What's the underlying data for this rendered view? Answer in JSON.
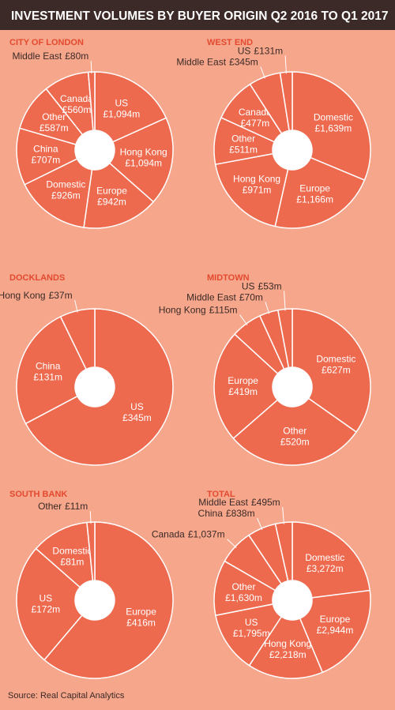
{
  "title": "INVESTMENT VOLUMES BY BUYER ORIGIN Q2 2016 TO Q1 2017",
  "source": "Source: Real Capital Analytics",
  "chart_data": [
    {
      "type": "pie",
      "title": "CITY OF LONDON",
      "color": "#ee6a4f",
      "categories": [
        "US",
        "Hong Kong",
        "Europe",
        "Domestic",
        "China",
        "Other",
        "Canada",
        "Middle East"
      ],
      "values": [
        1094,
        1094,
        942,
        926,
        707,
        587,
        560,
        80
      ],
      "value_labels": [
        "£1,094m",
        "£1,094m",
        "£942m",
        "£926m",
        "£707m",
        "£587m",
        "£560m",
        "£80m"
      ]
    },
    {
      "type": "pie",
      "title": "WEST END",
      "color": "#ee6a4f",
      "categories": [
        "Domestic",
        "Europe",
        "Hong Kong",
        "Other",
        "Canada",
        "Middle East",
        "US"
      ],
      "values": [
        1639,
        1166,
        971,
        511,
        477,
        345,
        131
      ],
      "value_labels": [
        "£1,639m",
        "£1,166m",
        "£971m",
        "£511m",
        "£477m",
        "£345m",
        "£131m"
      ]
    },
    {
      "type": "pie",
      "title": "DOCKLANDS",
      "color": "#ee6a4f",
      "categories": [
        "US",
        "China",
        "Hong Kong"
      ],
      "values": [
        345,
        131,
        37
      ],
      "value_labels": [
        "£345m",
        "£131m",
        "£37m"
      ]
    },
    {
      "type": "pie",
      "title": "MIDTOWN",
      "color": "#ee6a4f",
      "categories": [
        "Domestic",
        "Other",
        "Europe",
        "Hong Kong",
        "Middle East",
        "US"
      ],
      "values": [
        627,
        520,
        419,
        115,
        70,
        53
      ],
      "value_labels": [
        "£627m",
        "£520m",
        "£419m",
        "£115m",
        "£70m",
        "£53m"
      ]
    },
    {
      "type": "pie",
      "title": "SOUTH BANK",
      "color": "#ee6a4f",
      "categories": [
        "Europe",
        "US",
        "Domestic",
        "Other"
      ],
      "values": [
        416,
        172,
        81,
        11
      ],
      "value_labels": [
        "£416m",
        "£172m",
        "£81m",
        "£11m"
      ]
    },
    {
      "type": "pie",
      "title": "TOTAL",
      "color": "#ee6a4f",
      "categories": [
        "Domestic",
        "Europe",
        "Hong Kong",
        "US",
        "Other",
        "Canada",
        "China",
        "Middle East"
      ],
      "values": [
        3272,
        2944,
        2218,
        1795,
        1630,
        1037,
        838,
        495
      ],
      "value_labels": [
        "£3,272m",
        "£2,944m",
        "£2,218m",
        "£1,795m",
        "£1,630m",
        "£1,037m",
        "£838m",
        "£495m"
      ]
    }
  ]
}
